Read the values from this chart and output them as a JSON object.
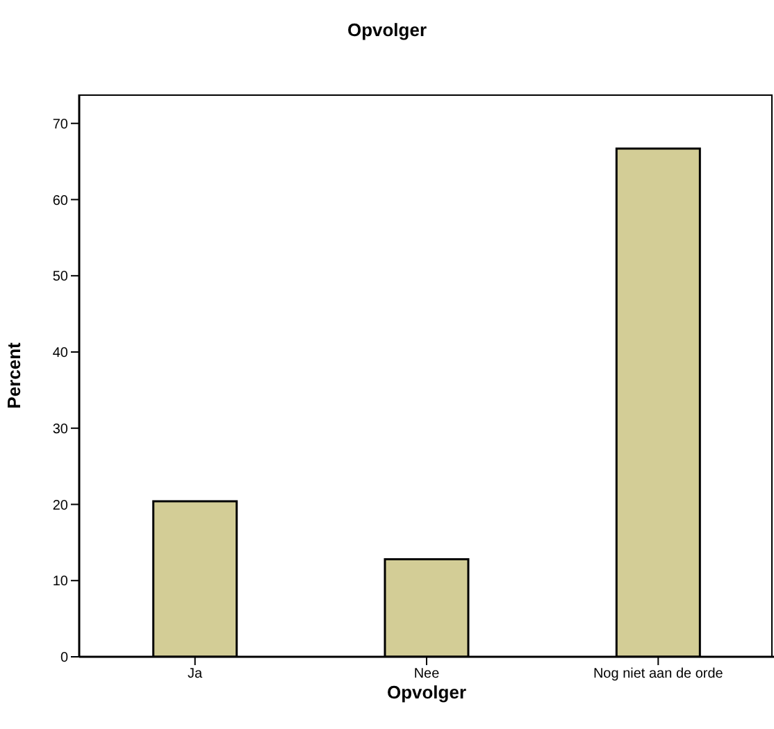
{
  "chart_data": {
    "type": "bar",
    "title": "Opvolger",
    "xlabel": "Opvolger",
    "ylabel": "Percent",
    "categories": [
      "Ja",
      "Nee",
      "Nog niet aan de orde"
    ],
    "values": [
      20.4,
      12.8,
      66.7
    ],
    "color": "#d3cd96",
    "ylim": [
      0,
      73.8
    ],
    "yticks": [
      0,
      10,
      20,
      30,
      40,
      50,
      60,
      70
    ],
    "grid": false
  }
}
